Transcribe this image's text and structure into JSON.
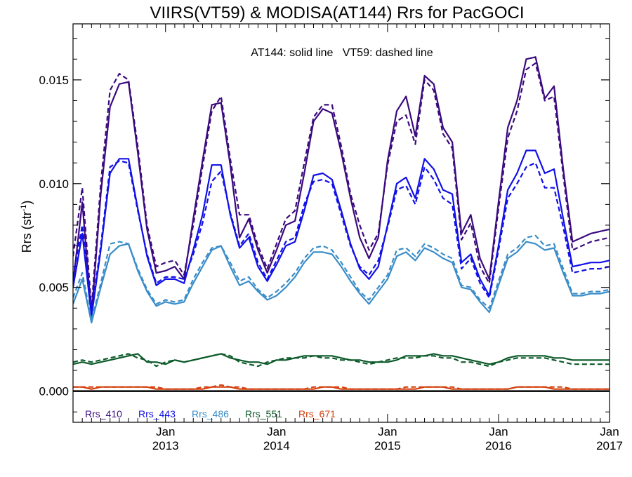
{
  "chart_data": {
    "type": "line",
    "title": "VIIRS(VT59) & MODISA(AT144)  Rrs for PacGOCI",
    "annotation": "AT144: solid line   VT59: dashed line",
    "ylabel_main": "Rrs (str",
    "ylabel_sup": "-1",
    "ylabel_close": ")",
    "xlabel": "",
    "xlim": [
      "2012-03",
      "2017-01"
    ],
    "ylim": [
      -0.0015,
      0.0177
    ],
    "y_ticks": [
      "0.000",
      "0.005",
      "0.010",
      "0.015"
    ],
    "x_ticks": [
      {
        "line1": "Jan",
        "line2": "2013",
        "date": "2013-01"
      },
      {
        "line1": "Jan",
        "line2": "2014",
        "date": "2014-01"
      },
      {
        "line1": "Jan",
        "line2": "2015",
        "date": "2015-01"
      },
      {
        "line1": "Jan",
        "line2": "2016",
        "date": "2016-01"
      },
      {
        "line1": "Jan",
        "line2": "2017",
        "date": "2017-01"
      }
    ],
    "grid": false,
    "legend_position": "bottom-left inside",
    "x": [
      "2012-03",
      "2012-04",
      "2012-05",
      "2012-06",
      "2012-07",
      "2012-08",
      "2012-09",
      "2012-10",
      "2012-11",
      "2012-12",
      "2013-01",
      "2013-02",
      "2013-03",
      "2013-04",
      "2013-05",
      "2013-06",
      "2013-07",
      "2013-08",
      "2013-09",
      "2013-10",
      "2013-11",
      "2013-12",
      "2014-01",
      "2014-02",
      "2014-03",
      "2014-04",
      "2014-05",
      "2014-06",
      "2014-07",
      "2014-08",
      "2014-09",
      "2014-10",
      "2014-11",
      "2014-12",
      "2015-01",
      "2015-02",
      "2015-03",
      "2015-04",
      "2015-05",
      "2015-06",
      "2015-07",
      "2015-08",
      "2015-09",
      "2015-10",
      "2015-11",
      "2015-12",
      "2016-01",
      "2016-02",
      "2016-03",
      "2016-04",
      "2016-05",
      "2016-06",
      "2016-07",
      "2016-08",
      "2016-09",
      "2016-10",
      "2016-11",
      "2016-12",
      "2017-01"
    ],
    "series": [
      {
        "name": "Rrs_410",
        "color": "#3b0a7e",
        "solid": [
          0.0052,
          0.0091,
          0.0036,
          0.0095,
          0.0137,
          0.0148,
          0.0149,
          0.0115,
          0.0078,
          0.0057,
          0.0058,
          0.006,
          0.0054,
          0.0083,
          0.0111,
          0.0138,
          0.0139,
          0.0109,
          0.0074,
          0.0083,
          0.0068,
          0.0057,
          0.0068,
          0.008,
          0.0082,
          0.0105,
          0.013,
          0.0136,
          0.0134,
          0.0115,
          0.0093,
          0.0074,
          0.0064,
          0.0074,
          0.0111,
          0.0135,
          0.0142,
          0.0123,
          0.0152,
          0.0148,
          0.0127,
          0.012,
          0.0076,
          0.0085,
          0.0064,
          0.0054,
          0.0091,
          0.0127,
          0.014,
          0.016,
          0.0161,
          0.0141,
          0.0147,
          0.0107,
          0.0072,
          0.0074,
          0.0076,
          0.0077,
          0.0078
        ],
        "dashed": [
          0.0065,
          0.0098,
          0.004,
          0.01,
          0.0145,
          0.0153,
          0.015,
          0.0118,
          0.008,
          0.006,
          0.0062,
          0.0063,
          0.0056,
          0.008,
          0.0108,
          0.0135,
          0.0142,
          0.0112,
          0.0085,
          0.0085,
          0.007,
          0.0059,
          0.0071,
          0.0083,
          0.0087,
          0.011,
          0.0132,
          0.0138,
          0.0138,
          0.0118,
          0.0095,
          0.008,
          0.0068,
          0.0076,
          0.0109,
          0.013,
          0.0133,
          0.0119,
          0.015,
          0.0145,
          0.0124,
          0.0117,
          0.0073,
          0.0081,
          0.006,
          0.0052,
          0.0088,
          0.0122,
          0.0135,
          0.0155,
          0.0158,
          0.014,
          0.0142,
          0.0104,
          0.0068,
          0.007,
          0.0072,
          0.0073,
          0.0074
        ]
      },
      {
        "name": "Rrs_443",
        "color": "#1010e8",
        "solid": [
          0.005,
          0.0076,
          0.0036,
          0.0068,
          0.0105,
          0.0112,
          0.0112,
          0.0088,
          0.0065,
          0.0051,
          0.0054,
          0.0054,
          0.0052,
          0.0068,
          0.0085,
          0.0109,
          0.0109,
          0.0085,
          0.0069,
          0.0074,
          0.006,
          0.0053,
          0.0061,
          0.007,
          0.0072,
          0.0087,
          0.0104,
          0.0105,
          0.0102,
          0.0087,
          0.0071,
          0.0059,
          0.0054,
          0.006,
          0.008,
          0.01,
          0.0103,
          0.0093,
          0.0112,
          0.0107,
          0.0097,
          0.0095,
          0.0062,
          0.0066,
          0.0054,
          0.0046,
          0.007,
          0.0097,
          0.0105,
          0.0116,
          0.0116,
          0.0105,
          0.0107,
          0.0083,
          0.006,
          0.0061,
          0.0062,
          0.0062,
          0.0063
        ],
        "dashed": [
          0.0055,
          0.008,
          0.0038,
          0.007,
          0.0108,
          0.0111,
          0.011,
          0.0087,
          0.0066,
          0.0052,
          0.0055,
          0.0055,
          0.0054,
          0.0066,
          0.0081,
          0.0101,
          0.0106,
          0.0086,
          0.007,
          0.0076,
          0.0062,
          0.0054,
          0.0063,
          0.0072,
          0.0074,
          0.009,
          0.0101,
          0.0102,
          0.01,
          0.0085,
          0.007,
          0.006,
          0.0056,
          0.0063,
          0.0079,
          0.0097,
          0.0099,
          0.009,
          0.0108,
          0.0102,
          0.0093,
          0.009,
          0.0059,
          0.0064,
          0.0052,
          0.0045,
          0.0068,
          0.0093,
          0.01,
          0.0108,
          0.011,
          0.0098,
          0.0098,
          0.0079,
          0.0057,
          0.0058,
          0.0059,
          0.0059,
          0.006
        ]
      },
      {
        "name": "Rrs_486",
        "color": "#3a8dc8",
        "solid": [
          0.0042,
          0.0054,
          0.0033,
          0.005,
          0.0066,
          0.007,
          0.0071,
          0.0058,
          0.0048,
          0.0041,
          0.0043,
          0.0042,
          0.0043,
          0.0052,
          0.006,
          0.0068,
          0.007,
          0.006,
          0.0051,
          0.0053,
          0.0048,
          0.0044,
          0.0046,
          0.005,
          0.0055,
          0.0062,
          0.0067,
          0.0067,
          0.0066,
          0.006,
          0.0053,
          0.0047,
          0.0042,
          0.0048,
          0.0054,
          0.0065,
          0.0067,
          0.0063,
          0.0069,
          0.0067,
          0.0064,
          0.0062,
          0.005,
          0.0049,
          0.0043,
          0.0038,
          0.0051,
          0.0064,
          0.0067,
          0.0072,
          0.0071,
          0.0068,
          0.0069,
          0.0057,
          0.0046,
          0.0046,
          0.0047,
          0.0047,
          0.0048
        ],
        "dashed": [
          0.0045,
          0.0057,
          0.0034,
          0.0052,
          0.0071,
          0.0072,
          0.0071,
          0.0059,
          0.0049,
          0.0042,
          0.0044,
          0.0043,
          0.0044,
          0.0054,
          0.0062,
          0.0069,
          0.007,
          0.0062,
          0.0053,
          0.0055,
          0.0049,
          0.0045,
          0.0048,
          0.0052,
          0.0057,
          0.0064,
          0.0069,
          0.007,
          0.0068,
          0.0062,
          0.0055,
          0.0048,
          0.0044,
          0.005,
          0.0056,
          0.0068,
          0.0069,
          0.0065,
          0.0071,
          0.0069,
          0.0066,
          0.0064,
          0.0051,
          0.005,
          0.0044,
          0.004,
          0.0053,
          0.0066,
          0.0069,
          0.0074,
          0.0075,
          0.007,
          0.0071,
          0.0059,
          0.0047,
          0.0047,
          0.0048,
          0.0048,
          0.0049
        ]
      },
      {
        "name": "Rrs_551",
        "color": "#0c5a2a",
        "solid": [
          0.0013,
          0.0014,
          0.0013,
          0.0014,
          0.0015,
          0.0016,
          0.0017,
          0.0018,
          0.0014,
          0.0014,
          0.0013,
          0.0015,
          0.0014,
          0.0015,
          0.0016,
          0.0017,
          0.0018,
          0.0016,
          0.0015,
          0.0014,
          0.0014,
          0.0013,
          0.0015,
          0.0015,
          0.0016,
          0.0017,
          0.0017,
          0.0017,
          0.0017,
          0.0016,
          0.0015,
          0.0015,
          0.0014,
          0.0014,
          0.0014,
          0.0015,
          0.0017,
          0.0017,
          0.0017,
          0.0018,
          0.0017,
          0.0017,
          0.0016,
          0.0015,
          0.0014,
          0.0013,
          0.0014,
          0.0016,
          0.0017,
          0.0017,
          0.0017,
          0.0017,
          0.0016,
          0.0016,
          0.0015,
          0.0015,
          0.0015,
          0.0015,
          0.0015
        ],
        "dashed": [
          0.0014,
          0.0015,
          0.0014,
          0.0015,
          0.0016,
          0.0017,
          0.0018,
          0.0016,
          0.0015,
          0.0012,
          0.0014,
          0.0015,
          0.0014,
          0.0015,
          0.0016,
          0.0017,
          0.0018,
          0.0017,
          0.0014,
          0.0013,
          0.0012,
          0.0014,
          0.0015,
          0.0016,
          0.0016,
          0.0016,
          0.0017,
          0.0016,
          0.0016,
          0.0015,
          0.0015,
          0.0014,
          0.0013,
          0.0014,
          0.0015,
          0.0016,
          0.0016,
          0.0016,
          0.0017,
          0.0017,
          0.0016,
          0.0016,
          0.0014,
          0.0014,
          0.0013,
          0.0012,
          0.0014,
          0.0015,
          0.0016,
          0.0016,
          0.0016,
          0.0016,
          0.0015,
          0.0014,
          0.0013,
          0.0013,
          0.0013,
          0.0013,
          0.0013
        ]
      },
      {
        "name": "Rrs_671",
        "color": "#d4400e",
        "solid": [
          0.0002,
          0.0002,
          0.0001,
          0.0002,
          0.0002,
          0.0002,
          0.0002,
          0.0002,
          0.0002,
          0.0001,
          0.0001,
          0.0001,
          0.0001,
          0.0001,
          0.0001,
          0.0002,
          0.0002,
          0.0002,
          0.0001,
          0.0001,
          0.0001,
          0.0001,
          0.0001,
          0.0001,
          0.0001,
          0.0001,
          0.0001,
          0.0002,
          0.0002,
          0.0001,
          0.0001,
          0.0001,
          0.0001,
          0.0001,
          0.0001,
          0.0001,
          0.0001,
          0.0001,
          0.0002,
          0.0002,
          0.0002,
          0.0001,
          0.0001,
          0.0001,
          0.0001,
          0.0001,
          0.0001,
          0.0001,
          0.0002,
          0.0002,
          0.0002,
          0.0002,
          0.0001,
          0.0001,
          0.0001,
          0.0001,
          0.0001,
          0.0001,
          0.0001
        ],
        "dashed": [
          0.0002,
          0.0002,
          0.0002,
          0.0002,
          0.0002,
          0.0002,
          0.0002,
          0.0002,
          0.0002,
          0.0002,
          0.0001,
          0.0001,
          0.0001,
          0.0001,
          0.0002,
          0.0002,
          0.0003,
          0.0002,
          0.0002,
          0.0001,
          0.0001,
          0.0001,
          0.0001,
          0.0001,
          0.0001,
          0.0001,
          0.0002,
          0.0002,
          0.0002,
          0.0002,
          0.0001,
          0.0001,
          0.0001,
          0.0001,
          0.0001,
          0.0001,
          0.0002,
          0.0002,
          0.0002,
          0.0002,
          0.0002,
          0.0002,
          0.0001,
          0.0001,
          0.0001,
          0.0001,
          0.0001,
          0.0001,
          0.0002,
          0.0002,
          0.0002,
          0.0002,
          0.0002,
          0.0002,
          0.0001,
          0.0001,
          0.0001,
          0.0001,
          0.0001
        ]
      }
    ]
  }
}
